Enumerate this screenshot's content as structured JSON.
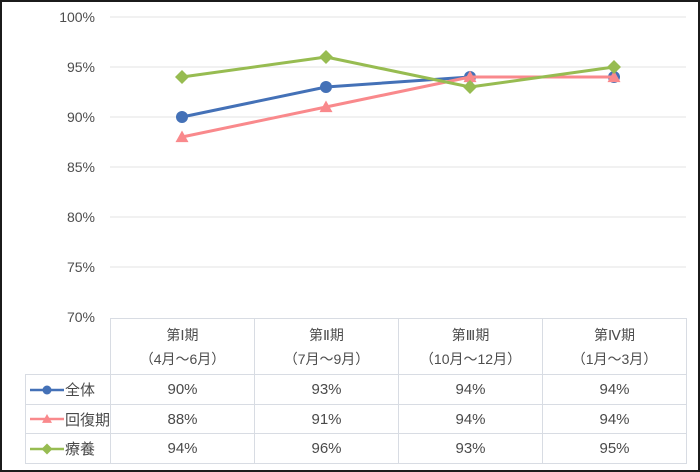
{
  "chart_data": {
    "type": "line",
    "categories": [
      {
        "label": "第Ⅰ期",
        "sublabel": "（4月～6月）"
      },
      {
        "label": "第Ⅱ期",
        "sublabel": "（7月～9月）"
      },
      {
        "label": "第Ⅲ期",
        "sublabel": "（10月～12月）"
      },
      {
        "label": "第Ⅳ期",
        "sublabel": "（1月～3月）"
      }
    ],
    "series": [
      {
        "name": "全体",
        "values": [
          90,
          93,
          94,
          94
        ],
        "color": "#4471B7",
        "marker": "circle"
      },
      {
        "name": "回復期",
        "values": [
          88,
          91,
          94,
          94
        ],
        "color": "#F9898C",
        "marker": "triangle"
      },
      {
        "name": "療養",
        "values": [
          94,
          96,
          93,
          95
        ],
        "color": "#97BC51",
        "marker": "diamond"
      }
    ],
    "title": "",
    "xlabel": "",
    "ylabel": "",
    "ylim": [
      70,
      100
    ],
    "ytick_step": 5,
    "ytick_labels": [
      "100%",
      "95%",
      "90%",
      "85%",
      "80%",
      "75%",
      "70%"
    ],
    "value_suffix": "%",
    "grid": true,
    "gridline_color": "#e3e3e3",
    "axis_label_color": "#4d4d4d",
    "legend_position": "table-left-column"
  },
  "table": {
    "border_color": "#d8dce3",
    "text_color": "#4a4a4a"
  }
}
